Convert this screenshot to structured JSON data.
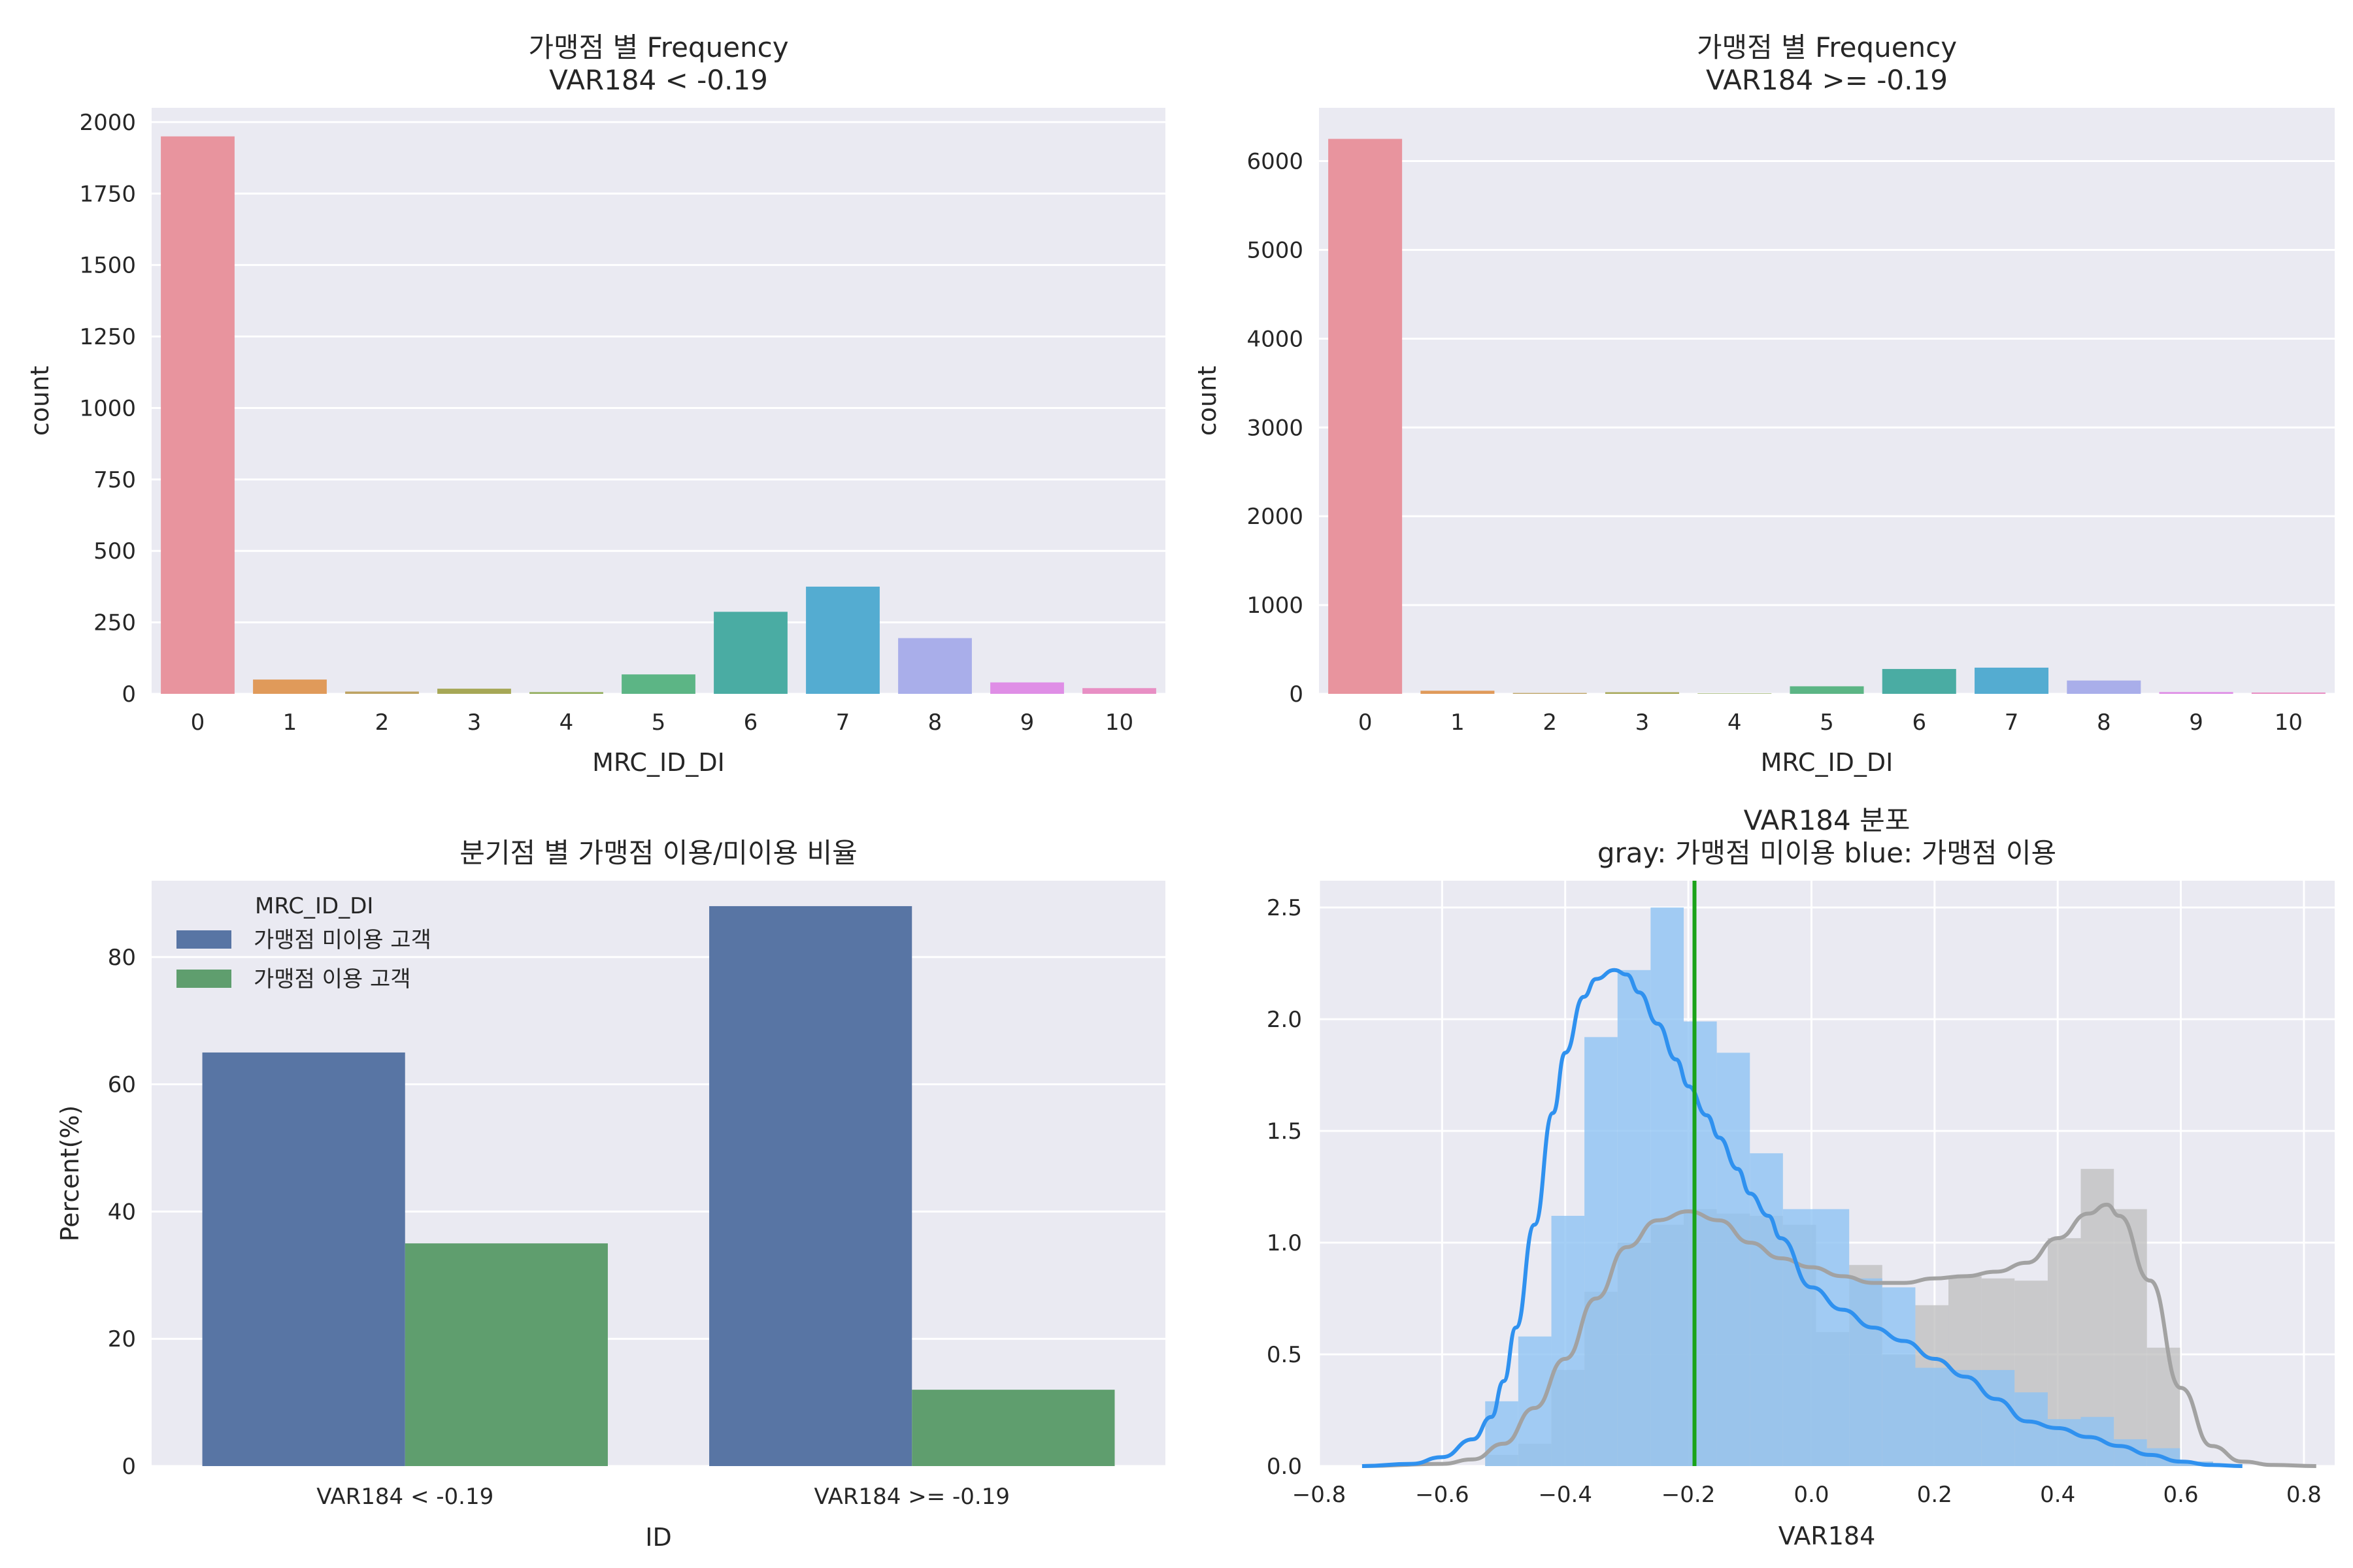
{
  "chart_data": [
    {
      "type": "bar",
      "title_lines": [
        "가맹점 별 Frequency",
        "VAR184 < -0.19"
      ],
      "xlabel": "MRC_ID_DI",
      "ylabel": "count",
      "categories": [
        "0",
        "1",
        "2",
        "3",
        "4",
        "5",
        "6",
        "7",
        "8",
        "9",
        "10"
      ],
      "values": [
        1950,
        50,
        8,
        18,
        6,
        68,
        287,
        375,
        195,
        40,
        20
      ],
      "ylim": [
        0,
        2050
      ],
      "yticks": [
        0,
        250,
        500,
        750,
        1000,
        1250,
        1500,
        1750,
        2000
      ],
      "colors": [
        "#e8949e",
        "#e09a5a",
        "#bda362",
        "#a6a756",
        "#92ad5b",
        "#5cb585",
        "#4aaca3",
        "#54acd1",
        "#a9aeea",
        "#df8ee6",
        "#e88fc4"
      ],
      "grid": true
    },
    {
      "type": "bar",
      "title_lines": [
        "가맹점 별 Frequency",
        "VAR184 >= -0.19"
      ],
      "xlabel": "MRC_ID_DI",
      "ylabel": "count",
      "categories": [
        "0",
        "1",
        "2",
        "3",
        "4",
        "5",
        "6",
        "7",
        "8",
        "9",
        "10"
      ],
      "values": [
        6250,
        35,
        10,
        18,
        5,
        85,
        280,
        295,
        150,
        20,
        15
      ],
      "ylim": [
        0,
        6600
      ],
      "yticks": [
        0,
        1000,
        2000,
        3000,
        4000,
        5000,
        6000
      ],
      "colors": [
        "#e8949e",
        "#e09a5a",
        "#bda362",
        "#a6a756",
        "#92ad5b",
        "#5cb585",
        "#4aaca3",
        "#54acd1",
        "#a9aeea",
        "#df8ee6",
        "#e88fc4"
      ],
      "grid": true
    },
    {
      "type": "bar",
      "title_lines": [
        "분기점 별 가맹점 이용/미이용 비율"
      ],
      "xlabel": "ID",
      "ylabel": "Percent(%)",
      "categories": [
        "VAR184 < -0.19",
        "VAR184 >= -0.19"
      ],
      "legend_title": "MRC_ID_DI",
      "legend_position": "top-left",
      "series": [
        {
          "name": "가맹점 미이용 고객",
          "values": [
            65,
            88
          ],
          "color": "#5875a4"
        },
        {
          "name": "가맹점 이용 고객",
          "values": [
            35,
            12
          ],
          "color": "#5f9e6e"
        }
      ],
      "ylim": [
        0,
        92
      ],
      "yticks": [
        0,
        20,
        40,
        60,
        80
      ],
      "grid": true
    },
    {
      "type": "area",
      "title_lines": [
        "VAR184 분포",
        "gray: 가맹점 미이용    blue: 가맹점 이용"
      ],
      "xlabel": "VAR184",
      "xlim": [
        -0.8,
        0.85
      ],
      "ylim": [
        0,
        2.62
      ],
      "xticks": [
        -0.8,
        -0.6,
        -0.4,
        -0.2,
        0.0,
        0.2,
        0.4,
        0.6,
        0.8
      ],
      "xtick_labels": [
        "−0.8",
        "−0.6",
        "−0.4",
        "−0.2",
        "0.0",
        "0.2",
        "0.4",
        "0.6",
        "0.8"
      ],
      "yticks": [
        0.0,
        0.5,
        1.0,
        1.5,
        2.0,
        2.5
      ],
      "ytick_labels": [
        "0.0",
        "0.5",
        "1.0",
        "1.5",
        "2.0",
        "2.5"
      ],
      "threshold": -0.19,
      "threshold_color": "#1aa31a",
      "hist_bins": [
        -0.53,
        -0.4763,
        -0.4225,
        -0.3688,
        -0.315,
        -0.2613,
        -0.2075,
        -0.1538,
        -0.1,
        -0.0463,
        0.0075,
        0.0613,
        0.115,
        0.1688,
        0.2225,
        0.2763,
        0.33,
        0.3838,
        0.4375,
        0.4913,
        0.545,
        0.5988,
        0.6525
      ],
      "hist_gray": [
        0.05,
        0.1,
        0.43,
        0.78,
        1.0,
        1.08,
        1.15,
        1.13,
        1.12,
        1.08,
        0.6,
        0.9,
        0.5,
        0.72,
        0.85,
        0.84,
        0.83,
        1.02,
        1.33,
        1.15,
        0.53,
        0.02
      ],
      "hist_blue": [
        0.29,
        0.58,
        1.12,
        1.92,
        2.22,
        2.5,
        1.99,
        1.85,
        1.4,
        1.15,
        1.15,
        0.84,
        0.8,
        0.44,
        0.43,
        0.43,
        0.33,
        0.21,
        0.22,
        0.12,
        0.08,
        0.02
      ],
      "kde_gray": {
        "x": [
          -0.73,
          -0.6,
          -0.55,
          -0.5,
          -0.45,
          -0.4,
          -0.35,
          -0.3,
          -0.25,
          -0.2,
          -0.15,
          -0.1,
          -0.05,
          0.0,
          0.05,
          0.1,
          0.15,
          0.2,
          0.25,
          0.3,
          0.35,
          0.4,
          0.45,
          0.48,
          0.5,
          0.55,
          0.6,
          0.65,
          0.7,
          0.75,
          0.82
        ],
        "y": [
          0.0,
          0.01,
          0.03,
          0.1,
          0.26,
          0.48,
          0.75,
          0.98,
          1.1,
          1.14,
          1.1,
          1.0,
          0.93,
          0.89,
          0.85,
          0.82,
          0.82,
          0.84,
          0.85,
          0.87,
          0.91,
          1.02,
          1.13,
          1.17,
          1.12,
          0.83,
          0.35,
          0.09,
          0.02,
          0.005,
          0.0
        ]
      },
      "kde_blue": {
        "x": [
          -0.73,
          -0.65,
          -0.6,
          -0.55,
          -0.52,
          -0.5,
          -0.48,
          -0.45,
          -0.42,
          -0.4,
          -0.37,
          -0.35,
          -0.32,
          -0.3,
          -0.28,
          -0.25,
          -0.22,
          -0.2,
          -0.17,
          -0.15,
          -0.12,
          -0.1,
          -0.07,
          -0.05,
          0.0,
          0.05,
          0.1,
          0.15,
          0.2,
          0.25,
          0.3,
          0.35,
          0.4,
          0.45,
          0.5,
          0.55,
          0.6,
          0.65,
          0.7
        ],
        "y": [
          0.0,
          0.01,
          0.04,
          0.12,
          0.22,
          0.38,
          0.62,
          1.08,
          1.58,
          1.85,
          2.1,
          2.18,
          2.22,
          2.2,
          2.12,
          1.98,
          1.82,
          1.7,
          1.57,
          1.47,
          1.33,
          1.22,
          1.12,
          1.02,
          0.8,
          0.7,
          0.62,
          0.56,
          0.48,
          0.4,
          0.3,
          0.2,
          0.17,
          0.13,
          0.09,
          0.05,
          0.02,
          0.005,
          0.0
        ]
      },
      "colors": {
        "gray_hist": "#bdbdbd",
        "gray_kde": "#a2a2a2",
        "blue_hist": "#8ec3f2",
        "blue_kde": "#2f91ef"
      },
      "grid": true
    }
  ]
}
